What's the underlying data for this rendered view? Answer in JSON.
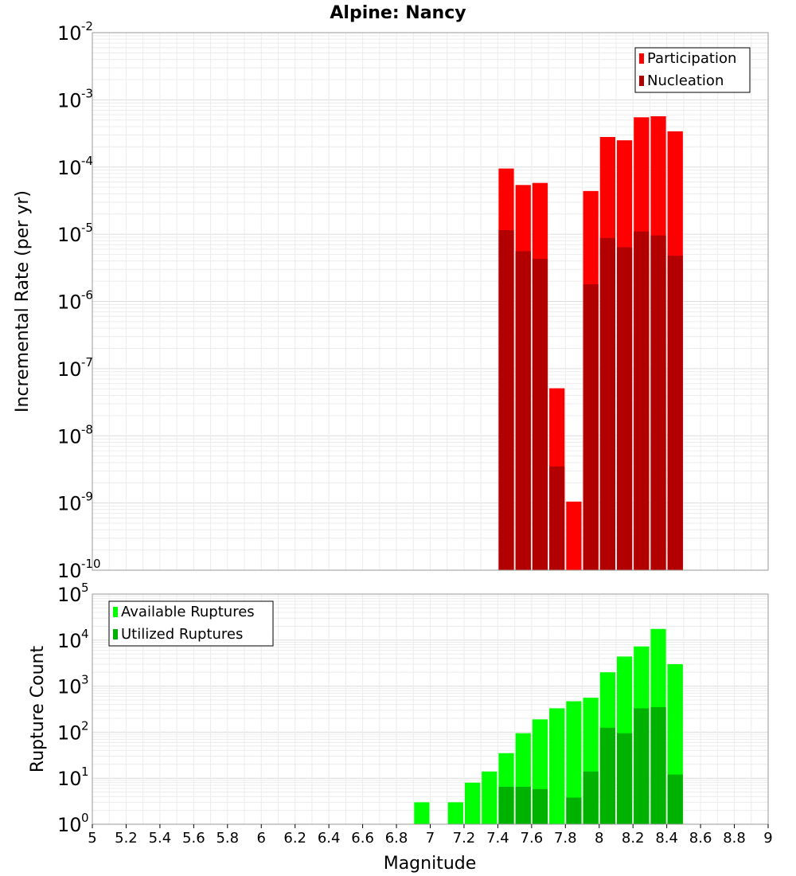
{
  "title": "Alpine: Nancy",
  "xlabel": "Magnitude",
  "chart_data": [
    {
      "type": "bar",
      "ylabel": "Incremental Rate (per yr)",
      "scale": "log",
      "ylim_exponents": [
        -10,
        -2
      ],
      "y_tick_base": "10",
      "y_tick_exponents": [
        "-10",
        "-9",
        "-8",
        "-7",
        "-6",
        "-5",
        "-4",
        "-3",
        "-2"
      ],
      "xlim": [
        5,
        9
      ],
      "bin_width": 0.1,
      "legend_position": "top-right",
      "grid": true,
      "series": [
        {
          "name": "Participation",
          "color": "#ff0000",
          "x": [
            7.45,
            7.55,
            7.65,
            7.75,
            7.85,
            7.95,
            8.05,
            8.15,
            8.25,
            8.35,
            8.45
          ],
          "values": [
            9.5e-05,
            5.4e-05,
            5.8e-05,
            5.1e-08,
            1.05e-09,
            4.4e-05,
            0.00028,
            0.00025,
            0.00055,
            0.00057,
            0.00034
          ]
        },
        {
          "name": "Nucleation",
          "color": "#b20000",
          "x": [
            7.45,
            7.55,
            7.65,
            7.75,
            7.95,
            8.05,
            8.15,
            8.25,
            8.35,
            8.45
          ],
          "values": [
            1.15e-05,
            5.6e-06,
            4.3e-06,
            3.5e-09,
            1.8e-06,
            8.8e-06,
            6.4e-06,
            1.1e-05,
            9.6e-06,
            4.8e-06
          ]
        }
      ]
    },
    {
      "type": "bar",
      "ylabel": "Rupture Count",
      "scale": "log",
      "ylim_exponents": [
        0,
        5
      ],
      "y_tick_base": "10",
      "y_tick_exponents": [
        "0",
        "1",
        "2",
        "3",
        "4",
        "5"
      ],
      "xlim": [
        5,
        9
      ],
      "bin_width": 0.1,
      "x_ticks": [
        "5",
        "5.2",
        "5.4",
        "5.6",
        "5.8",
        "6",
        "6.2",
        "6.4",
        "6.6",
        "6.8",
        "7",
        "7.2",
        "7.4",
        "7.6",
        "7.8",
        "8",
        "8.2",
        "8.4",
        "8.6",
        "8.8",
        "9"
      ],
      "legend_position": "top-left",
      "grid": true,
      "series": [
        {
          "name": "Available Ruptures",
          "color": "#00ff00",
          "x": [
            6.55,
            6.95,
            7.05,
            7.15,
            7.25,
            7.35,
            7.45,
            7.55,
            7.65,
            7.75,
            7.85,
            7.95,
            8.05,
            8.15,
            8.25,
            8.35,
            8.45
          ],
          "values": [
            1,
            3,
            1,
            3,
            8,
            14,
            35,
            95,
            190,
            330,
            470,
            560,
            2000,
            4400,
            7300,
            17500,
            3000
          ]
        },
        {
          "name": "Utilized Ruptures",
          "color": "#00b200",
          "x": [
            7.45,
            7.55,
            7.65,
            7.75,
            7.85,
            7.95,
            8.05,
            8.15,
            8.25,
            8.35,
            8.45
          ],
          "values": [
            6.5,
            6.5,
            5.8,
            1,
            3.8,
            14,
            125,
            95,
            330,
            350,
            12
          ]
        }
      ]
    }
  ]
}
